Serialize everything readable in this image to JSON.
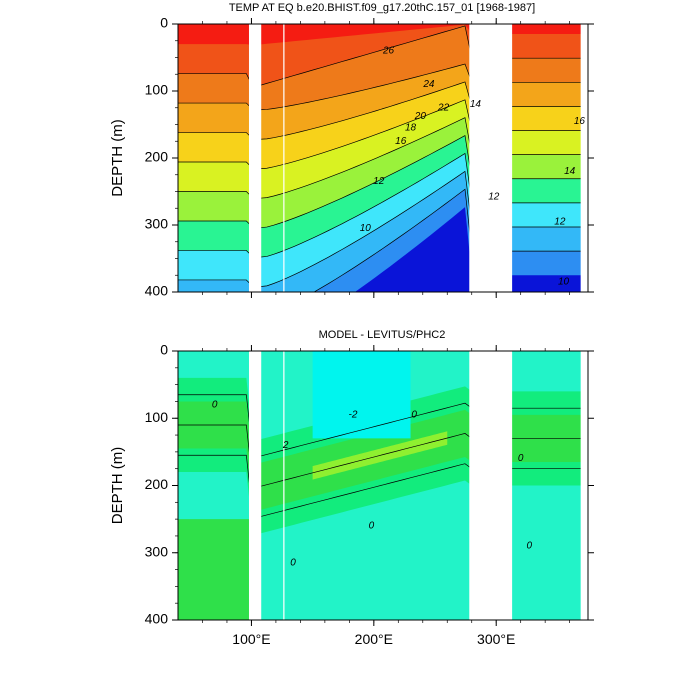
{
  "palette": {
    "temp": [
      "#0a14d8",
      "#1b58f0",
      "#2d8ef2",
      "#33b8f7",
      "#3fe6fb",
      "#00f7c8",
      "#29f493",
      "#55ee55",
      "#9af23b",
      "#d9f222",
      "#f7d21a",
      "#f3a51a",
      "#ee7a1a",
      "#f05318",
      "#f51c12"
    ],
    "diff": {
      "base": "#22f3c8",
      "neg": "#00f5ee",
      "pos1": "#12ec7d",
      "pos2": "#2fe04a",
      "pos3": "#8ff030"
    },
    "gap": "#ffffff"
  },
  "chart_data": [
    {
      "id": "top",
      "type": "contour",
      "title": "TEMP AT EQ b.e20.BHIST.f09_g17.20thC.157_01 [1968-1987]",
      "ylabel": "DEPTH (m)",
      "xlabel": "",
      "xlim": [
        40,
        375
      ],
      "ylim": [
        0,
        400
      ],
      "y_inverted": true,
      "xticks": [
        {
          "v": 100,
          "label": "100°E"
        },
        {
          "v": 200,
          "label": "200°E"
        },
        {
          "v": 300,
          "label": "300°E"
        }
      ],
      "yticks": [
        0,
        100,
        200,
        300,
        400
      ],
      "levels": [
        26,
        24,
        22,
        20,
        18,
        16,
        14,
        12,
        10
      ],
      "contour_labels": [
        {
          "text": "26",
          "x": 212,
          "y": 40
        },
        {
          "text": "24",
          "x": 245,
          "y": 90
        },
        {
          "text": "22",
          "x": 257,
          "y": 125
        },
        {
          "text": "20",
          "x": 238,
          "y": 138
        },
        {
          "text": "18",
          "x": 230,
          "y": 155
        },
        {
          "text": "16",
          "x": 222,
          "y": 175
        },
        {
          "text": "14",
          "x": 283,
          "y": 120
        },
        {
          "text": "12",
          "x": 204,
          "y": 235
        },
        {
          "text": "12",
          "x": 298,
          "y": 258
        },
        {
          "text": "10",
          "x": 193,
          "y": 305
        },
        {
          "text": "16",
          "x": 368,
          "y": 145
        },
        {
          "text": "14",
          "x": 360,
          "y": 220
        },
        {
          "text": "12",
          "x": 352,
          "y": 295
        },
        {
          "text": "10",
          "x": 355,
          "y": 385
        }
      ],
      "land_gaps": [
        [
          98,
          108
        ],
        [
          126,
          127
        ],
        [
          278,
          313
        ],
        [
          369,
          375
        ]
      ]
    },
    {
      "id": "bottom",
      "type": "contour",
      "title": "MODEL - LEVITUS/PHC2",
      "ylabel": "DEPTH (m)",
      "xlabel": "",
      "xlim": [
        40,
        375
      ],
      "ylim": [
        0,
        400
      ],
      "y_inverted": true,
      "xticks": [
        {
          "v": 100,
          "label": "100°E"
        },
        {
          "v": 200,
          "label": "200°E"
        },
        {
          "v": 300,
          "label": "300°E"
        }
      ],
      "yticks": [
        0,
        100,
        200,
        300,
        400
      ],
      "levels": [
        -2,
        0,
        2
      ],
      "contour_labels": [
        {
          "text": "0",
          "x": 70,
          "y": 80
        },
        {
          "text": "2",
          "x": 128,
          "y": 140
        },
        {
          "text": "-2",
          "x": 183,
          "y": 95
        },
        {
          "text": "0",
          "x": 233,
          "y": 95
        },
        {
          "text": "0",
          "x": 198,
          "y": 260
        },
        {
          "text": "0",
          "x": 134,
          "y": 315
        },
        {
          "text": "0",
          "x": 320,
          "y": 160
        },
        {
          "text": "0",
          "x": 327,
          "y": 290
        }
      ],
      "land_gaps": [
        [
          98,
          108
        ],
        [
          126,
          127
        ],
        [
          278,
          313
        ],
        [
          369,
          375
        ]
      ]
    }
  ]
}
